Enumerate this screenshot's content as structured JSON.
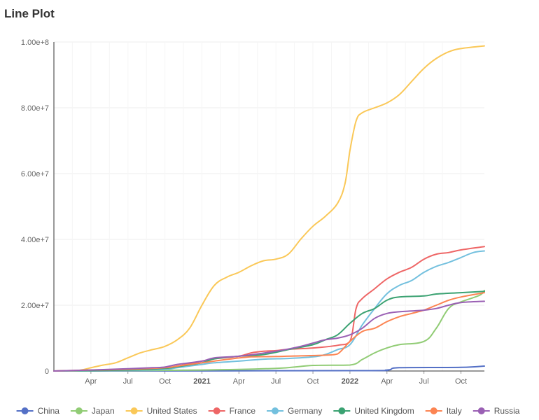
{
  "title": "Line Plot",
  "chart_data": {
    "type": "line",
    "title": "Line Plot",
    "xlabel": "",
    "ylabel": "",
    "x_start": "2020-01",
    "x_end": "2022-12",
    "ylim": [
      0,
      100000000
    ],
    "y_ticks": [
      {
        "value": 0,
        "label": "0"
      },
      {
        "value": 20000000,
        "label": "2.00e+7"
      },
      {
        "value": 40000000,
        "label": "4.00e+7"
      },
      {
        "value": 60000000,
        "label": "6.00e+7"
      },
      {
        "value": 80000000,
        "label": "8.00e+7"
      },
      {
        "value": 100000000,
        "label": "1.00e+8"
      }
    ],
    "x_ticks": [
      {
        "month": 3,
        "label": "Apr",
        "bold": false
      },
      {
        "month": 6,
        "label": "Jul",
        "bold": false
      },
      {
        "month": 9,
        "label": "Oct",
        "bold": false
      },
      {
        "month": 12,
        "label": "2021",
        "bold": true
      },
      {
        "month": 15,
        "label": "Apr",
        "bold": false
      },
      {
        "month": 18,
        "label": "Jul",
        "bold": false
      },
      {
        "month": 21,
        "label": "Oct",
        "bold": false
      },
      {
        "month": 24,
        "label": "2022",
        "bold": true
      },
      {
        "month": 27,
        "label": "Apr",
        "bold": false
      },
      {
        "month": 30,
        "label": "Jul",
        "bold": false
      },
      {
        "month": 33,
        "label": "Oct",
        "bold": false
      }
    ],
    "series": [
      {
        "name": "China",
        "color": "#5470c6",
        "points": [
          [
            0,
            0
          ],
          [
            24,
            100000
          ],
          [
            27,
            300000
          ],
          [
            28,
            1000000
          ],
          [
            33,
            1100000
          ],
          [
            34.9,
            1500000
          ]
        ]
      },
      {
        "name": "Japan",
        "color": "#91cc75",
        "points": [
          [
            0,
            0
          ],
          [
            12,
            300000
          ],
          [
            18,
            800000
          ],
          [
            21,
            1700000
          ],
          [
            24,
            1800000
          ],
          [
            25,
            3500000
          ],
          [
            26,
            5500000
          ],
          [
            27,
            7000000
          ],
          [
            28,
            8000000
          ],
          [
            30,
            9000000
          ],
          [
            31,
            13000000
          ],
          [
            32,
            19000000
          ],
          [
            33,
            21000000
          ],
          [
            34.5,
            23000000
          ],
          [
            34.9,
            24500000
          ]
        ]
      },
      {
        "name": "United States",
        "color": "#fac858",
        "points": [
          [
            0,
            0
          ],
          [
            2,
            200000
          ],
          [
            3,
            1000000
          ],
          [
            4,
            1800000
          ],
          [
            5,
            2500000
          ],
          [
            6,
            4000000
          ],
          [
            7,
            5500000
          ],
          [
            8,
            6500000
          ],
          [
            9,
            7500000
          ],
          [
            10,
            9500000
          ],
          [
            11,
            13000000
          ],
          [
            12,
            20000000
          ],
          [
            13,
            26000000
          ],
          [
            14,
            28500000
          ],
          [
            15,
            30000000
          ],
          [
            16,
            32000000
          ],
          [
            17,
            33500000
          ],
          [
            18,
            34000000
          ],
          [
            19,
            35500000
          ],
          [
            20,
            40000000
          ],
          [
            21,
            44000000
          ],
          [
            22,
            47000000
          ],
          [
            23,
            51000000
          ],
          [
            23.6,
            57000000
          ],
          [
            24,
            67000000
          ],
          [
            24.5,
            76000000
          ],
          [
            25,
            78500000
          ],
          [
            26,
            80000000
          ],
          [
            27,
            81500000
          ],
          [
            28,
            84000000
          ],
          [
            29,
            88000000
          ],
          [
            30,
            92000000
          ],
          [
            31,
            95000000
          ],
          [
            32,
            97000000
          ],
          [
            33,
            98000000
          ],
          [
            34.9,
            98800000
          ]
        ]
      },
      {
        "name": "France",
        "color": "#ee6666",
        "points": [
          [
            0,
            0
          ],
          [
            6,
            300000
          ],
          [
            9,
            800000
          ],
          [
            10,
            1500000
          ],
          [
            12,
            3000000
          ],
          [
            13,
            3700000
          ],
          [
            15,
            4500000
          ],
          [
            16,
            5500000
          ],
          [
            17,
            6000000
          ],
          [
            18,
            6200000
          ],
          [
            19,
            6600000
          ],
          [
            21,
            7000000
          ],
          [
            23,
            7800000
          ],
          [
            24,
            9000000
          ],
          [
            24.5,
            19000000
          ],
          [
            25,
            22000000
          ],
          [
            26,
            25000000
          ],
          [
            27,
            28000000
          ],
          [
            28,
            30000000
          ],
          [
            29,
            31500000
          ],
          [
            30,
            34000000
          ],
          [
            31,
            35500000
          ],
          [
            32,
            36000000
          ],
          [
            33,
            36800000
          ],
          [
            34.9,
            37800000
          ]
        ]
      },
      {
        "name": "Germany",
        "color": "#73c0de",
        "points": [
          [
            0,
            0
          ],
          [
            6,
            200000
          ],
          [
            9,
            500000
          ],
          [
            10,
            1000000
          ],
          [
            12,
            2000000
          ],
          [
            13,
            2500000
          ],
          [
            15,
            3000000
          ],
          [
            17,
            3600000
          ],
          [
            19,
            3800000
          ],
          [
            21,
            4300000
          ],
          [
            22,
            5000000
          ],
          [
            23,
            6500000
          ],
          [
            24,
            8000000
          ],
          [
            25,
            14000000
          ],
          [
            26,
            19000000
          ],
          [
            27,
            23500000
          ],
          [
            28,
            26000000
          ],
          [
            29,
            27500000
          ],
          [
            30,
            30000000
          ],
          [
            31,
            31800000
          ],
          [
            32,
            33000000
          ],
          [
            33,
            34500000
          ],
          [
            34,
            36000000
          ],
          [
            34.9,
            36500000
          ]
        ]
      },
      {
        "name": "United Kingdom",
        "color": "#3ba272",
        "points": [
          [
            0,
            0
          ],
          [
            6,
            300000
          ],
          [
            9,
            800000
          ],
          [
            10,
            1300000
          ],
          [
            12,
            2500000
          ],
          [
            13,
            3700000
          ],
          [
            15,
            4500000
          ],
          [
            17,
            5000000
          ],
          [
            19,
            6500000
          ],
          [
            21,
            8000000
          ],
          [
            22,
            9500000
          ],
          [
            23,
            11000000
          ],
          [
            24,
            14500000
          ],
          [
            25,
            17500000
          ],
          [
            26,
            19000000
          ],
          [
            27,
            21500000
          ],
          [
            28,
            22500000
          ],
          [
            30,
            22800000
          ],
          [
            31,
            23400000
          ],
          [
            33,
            23800000
          ],
          [
            34.9,
            24200000
          ]
        ]
      },
      {
        "name": "Italy",
        "color": "#fc8452",
        "points": [
          [
            0,
            0
          ],
          [
            3,
            300000
          ],
          [
            6,
            500000
          ],
          [
            9,
            1000000
          ],
          [
            10,
            1500000
          ],
          [
            12,
            2500000
          ],
          [
            14,
            3500000
          ],
          [
            16,
            4300000
          ],
          [
            18,
            4400000
          ],
          [
            20,
            4600000
          ],
          [
            22,
            4800000
          ],
          [
            23,
            5200000
          ],
          [
            24,
            9000000
          ],
          [
            25,
            12000000
          ],
          [
            26,
            13000000
          ],
          [
            27,
            15000000
          ],
          [
            28,
            16500000
          ],
          [
            29,
            17500000
          ],
          [
            30,
            18500000
          ],
          [
            31,
            20000000
          ],
          [
            32,
            21500000
          ],
          [
            33,
            22500000
          ],
          [
            34.9,
            23800000
          ]
        ]
      },
      {
        "name": "Russia",
        "color": "#9a60b4",
        "points": [
          [
            0,
            0
          ],
          [
            3,
            300000
          ],
          [
            6,
            700000
          ],
          [
            8,
            1000000
          ],
          [
            9,
            1200000
          ],
          [
            10,
            2000000
          ],
          [
            12,
            3000000
          ],
          [
            13,
            4000000
          ],
          [
            15,
            4500000
          ],
          [
            18,
            6000000
          ],
          [
            20,
            7500000
          ],
          [
            21,
            8500000
          ],
          [
            22,
            9500000
          ],
          [
            23,
            10000000
          ],
          [
            24,
            11000000
          ],
          [
            25,
            13000000
          ],
          [
            26,
            16000000
          ],
          [
            27,
            17500000
          ],
          [
            28,
            18000000
          ],
          [
            30,
            18500000
          ],
          [
            31,
            19000000
          ],
          [
            32,
            20000000
          ],
          [
            33,
            20800000
          ],
          [
            34.9,
            21200000
          ]
        ]
      }
    ]
  }
}
